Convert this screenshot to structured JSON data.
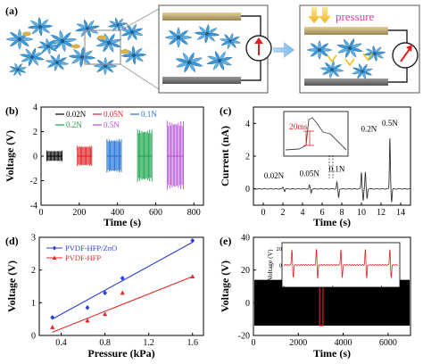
{
  "panel_a": {
    "label": "(a)",
    "pressure_label": "pressure",
    "colors": {
      "flake": "#3e9ad6",
      "flake_dark": "#1d5f94",
      "electrode": "#c7b07a",
      "electrode_bottom": "#7e7e7e",
      "arrow": "#ffd54a",
      "pressure_text": "#e0409a",
      "meter": "#e02020"
    }
  },
  "chart_data": [
    {
      "panel": "(b)",
      "type": "line",
      "xlabel": "Time (s)",
      "ylabel": "Voltage (V)",
      "xlim": [
        0,
        850
      ],
      "ylim": [
        -4,
        4
      ],
      "xticks": [
        0,
        200,
        400,
        600,
        800
      ],
      "yticks": [
        -4,
        -2,
        0,
        2,
        4
      ],
      "series": [
        {
          "name": "0.02N",
          "color": "#000000",
          "t_range": [
            30,
            110
          ],
          "amplitude": 0.45
        },
        {
          "name": "0.05N",
          "color": "#e02020",
          "t_range": [
            190,
            265
          ],
          "amplitude": 0.85
        },
        {
          "name": "0.1N",
          "color": "#1d6fd6",
          "t_range": [
            345,
            420
          ],
          "amplitude": 1.4
        },
        {
          "name": "0.2N",
          "color": "#17a34a",
          "t_range": [
            505,
            580
          ],
          "amplitude": 2.2
        },
        {
          "name": "0.5N",
          "color": "#b44fd6",
          "t_range": [
            660,
            745
          ],
          "amplitude": 2.9
        }
      ]
    },
    {
      "panel": "(c)",
      "type": "line",
      "xlabel": "Time (s)",
      "ylabel": "Current (nA)",
      "xlim": [
        -1,
        15
      ],
      "ylim": [
        -1,
        5
      ],
      "xticks": [
        0,
        2,
        4,
        6,
        8,
        10,
        12,
        14
      ],
      "yticks": [
        0,
        2,
        4
      ],
      "peaks": [
        {
          "label": "0.02N",
          "t": 2.0,
          "up": 0.1,
          "down": -0.15
        },
        {
          "label": "0.05N",
          "t": 4.7,
          "up": 0.22,
          "down": -0.25
        },
        {
          "label": "0.1N",
          "t": 7.5,
          "up": 0.4,
          "down": -0.55
        },
        {
          "label": "0.2N",
          "t": 10.0,
          "up": 1.0,
          "down": -0.7
        },
        {
          "label": "0.2N",
          "t": 10.4,
          "up": 1.0,
          "down": -0.6
        },
        {
          "label": "0.5N",
          "t": 12.9,
          "up": 3.1,
          "down": -0.8
        }
      ],
      "inset_label": "20ms",
      "color": "#333333"
    },
    {
      "panel": "(d)",
      "type": "scatter",
      "xlabel": "Pressure (kPa)",
      "ylabel": "Voltage (V)",
      "xlim": [
        0.2,
        1.7
      ],
      "ylim": [
        0,
        3
      ],
      "xticks": [
        0.4,
        0.8,
        1.2,
        1.6
      ],
      "yticks": [
        0,
        1,
        2,
        3
      ],
      "legend_position": "top-left",
      "series": [
        {
          "name": "PVDF-HFP/ZnO",
          "color": "#2b3fd6",
          "marker": "diamond",
          "x": [
            0.32,
            0.64,
            0.8,
            0.96,
            1.6
          ],
          "y": [
            0.55,
            0.85,
            1.3,
            1.75,
            2.9
          ],
          "fit": [
            [
              0.32,
              0.5
            ],
            [
              1.6,
              2.85
            ]
          ]
        },
        {
          "name": "PVDF-HFP",
          "color": "#e02a2a",
          "marker": "triangle",
          "x": [
            0.32,
            0.64,
            0.8,
            0.96,
            1.6
          ],
          "y": [
            0.25,
            0.45,
            0.65,
            1.3,
            1.8
          ],
          "fit": [
            [
              0.32,
              0.1
            ],
            [
              1.6,
              1.8
            ]
          ]
        }
      ]
    },
    {
      "panel": "(e)",
      "type": "line",
      "xlabel": "Time (s)",
      "ylabel": "Voltage (V)",
      "xlim": [
        0,
        7000
      ],
      "ylim": [
        -20,
        40
      ],
      "xticks": [
        0,
        2000,
        4000,
        6000
      ],
      "yticks": [
        -20,
        0,
        20,
        40
      ],
      "band": [
        -14,
        14
      ],
      "color": "#000000",
      "highlight_t": [
        2950,
        3100
      ],
      "inset": {
        "xlabel": "Time (s)",
        "ylabel": "Voltage (V)",
        "xticks": [
          3000,
          3003,
          3006
        ],
        "yticks": [
          -20,
          0,
          20
        ],
        "peak_times": [
          3000.5,
          3002.0,
          3003.5,
          3005.0,
          3006.5
        ],
        "xlim": [
          3000,
          3007
        ],
        "ylim": [
          -25,
          25
        ],
        "color": "#e02020"
      }
    }
  ]
}
